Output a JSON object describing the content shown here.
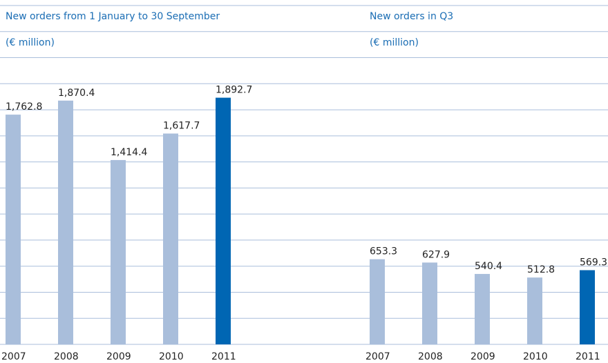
{
  "chart_data": [
    {
      "type": "bar",
      "title": "New orders from 1 January to 30 September",
      "subtitle": "(€ million)",
      "categories": [
        "2007",
        "2008",
        "2009",
        "2010",
        "2011"
      ],
      "values": [
        1762.8,
        1870.4,
        1414.4,
        1617.7,
        1892.7
      ],
      "value_labels": [
        "1,762.8",
        "1,870.4",
        "1,414.4",
        "1,617.7",
        "1,892.7"
      ],
      "colors": [
        "#a9bedb",
        "#a9bedb",
        "#a9bedb",
        "#a9bedb",
        "#0066b3"
      ],
      "ylim": [
        0,
        2600
      ],
      "yticks": [
        0,
        200,
        400,
        600,
        800,
        1000,
        1200,
        1400,
        1600,
        1800,
        2000,
        2200,
        2400,
        2600
      ],
      "grid": true
    },
    {
      "type": "bar",
      "title": "New orders in Q3",
      "subtitle": "(€ million)",
      "categories": [
        "2007",
        "2008",
        "2009",
        "2010",
        "2011"
      ],
      "values": [
        653.3,
        627.9,
        540.4,
        512.8,
        569.3
      ],
      "value_labels": [
        "653.3",
        "627.9",
        "540.4",
        "512.8",
        "569.3"
      ],
      "colors": [
        "#a9bedb",
        "#a9bedb",
        "#a9bedb",
        "#a9bedb",
        "#0066b3"
      ],
      "ylim": [
        0,
        2600
      ],
      "yticks": [
        0,
        200,
        400,
        600,
        800,
        1000,
        1200,
        1400,
        1600,
        1800,
        2000,
        2200,
        2400,
        2600
      ],
      "grid": true
    }
  ]
}
